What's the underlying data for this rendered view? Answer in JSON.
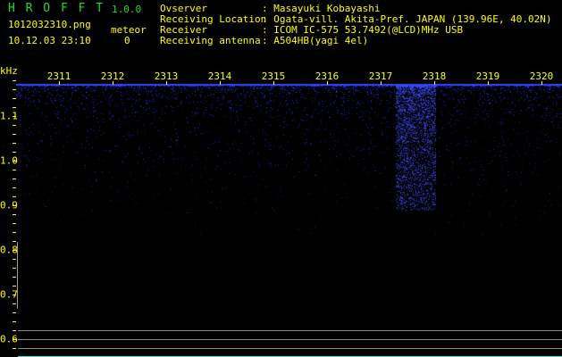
{
  "app": {
    "title": "H R O F F T",
    "version": "1.0.0",
    "filename": "1012032310.png",
    "datetime": "10.12.03 23:10",
    "meteor_label": "meteor",
    "meteor_count": "0"
  },
  "info": [
    {
      "label": "Ovserver",
      "value": ": Masayuki Kobayashi"
    },
    {
      "label": "Receiving Location",
      "value": ": Ogata-vill. Akita-Pref. JAPAN (139.96E, 40.02N)"
    },
    {
      "label": "Receiver",
      "value": ": ICOM IC-575 53.7492(@LCD)MHz USB"
    },
    {
      "label": "Receiving antenna",
      "value": ": A504HB(yagi 4el)"
    }
  ],
  "axis": {
    "y_unit": "kHz",
    "x_ticks": [
      "2311",
      "2312",
      "2313",
      "2314",
      "2315",
      "2316",
      "2317",
      "2318",
      "2319",
      "2320"
    ],
    "y_ticks": [
      "1.1",
      "1.0",
      "0.9",
      "0.8",
      "0.7",
      "0.6"
    ]
  },
  "colors": {
    "text": "#ffff00",
    "title": "#22dd22",
    "signal": "#2233ff",
    "baseline": "#3344ff"
  }
}
